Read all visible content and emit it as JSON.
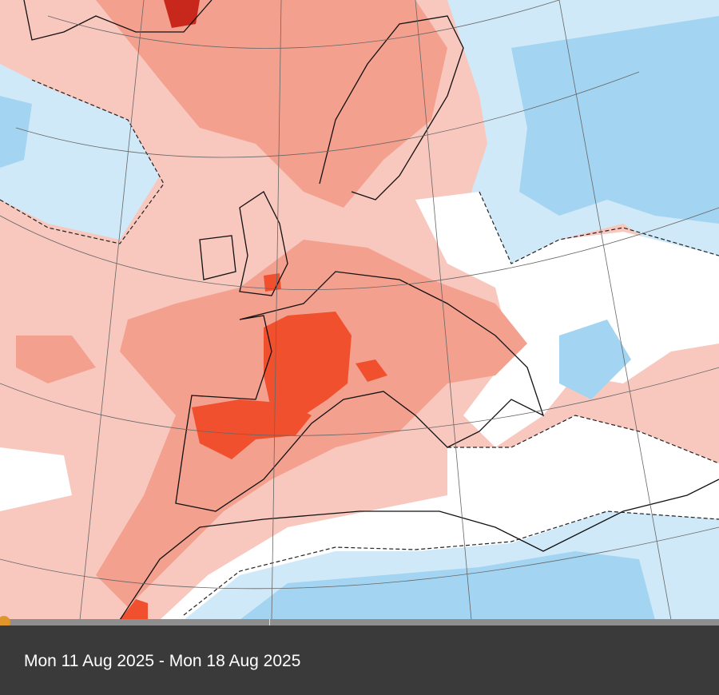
{
  "map": {
    "colors": {
      "strong_warm": "#f0502d",
      "warm": "#f4a08f",
      "slight_warm": "#f8c7be",
      "neutral": "#ffffff",
      "slight_cool": "#cfe9f8",
      "cool": "#a3d4f1",
      "very_warm": "#c8281c"
    }
  },
  "timeline": {
    "knob_position": 0,
    "knob_color": "#e0962a"
  },
  "footer": {
    "date_range": "Mon 11 Aug 2025 - Mon 18 Aug 2025"
  }
}
